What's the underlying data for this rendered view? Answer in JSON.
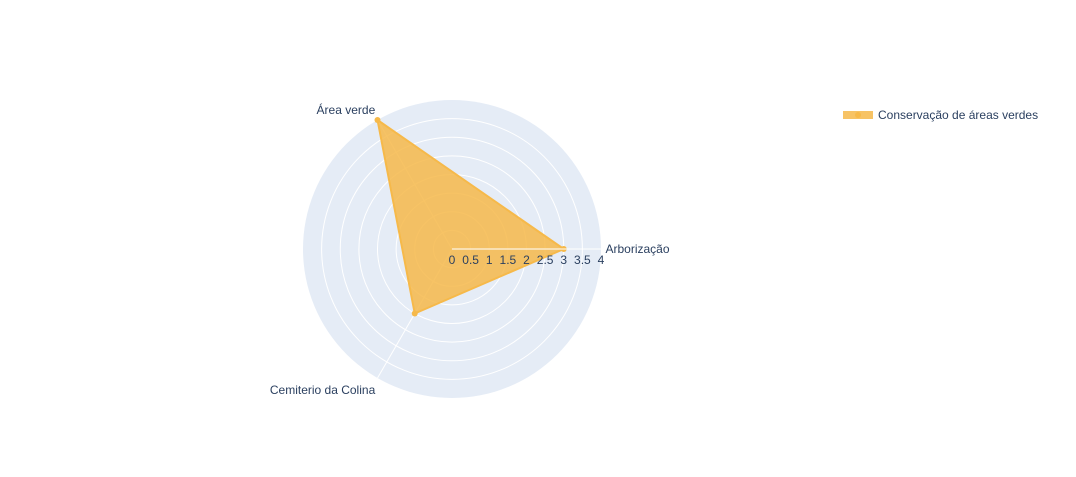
{
  "chart_data": {
    "type": "radar",
    "categories": [
      "Arborização",
      "Área verde",
      "Cemiterio da Colina"
    ],
    "series": [
      {
        "name": "Conservação de áreas verdes",
        "values": [
          3,
          4,
          2
        ],
        "color": "#F6B94A",
        "fill_opacity": 0.85
      }
    ],
    "radial_range": [
      0,
      4
    ],
    "radial_ticks": [
      "0",
      "0.5",
      "1",
      "1.5",
      "2",
      "2.5",
      "3",
      "3.5",
      "4"
    ],
    "grid": true,
    "polar_background": "#E5ECF6",
    "grid_color": "#ffffff",
    "legend_position": "top-right"
  }
}
